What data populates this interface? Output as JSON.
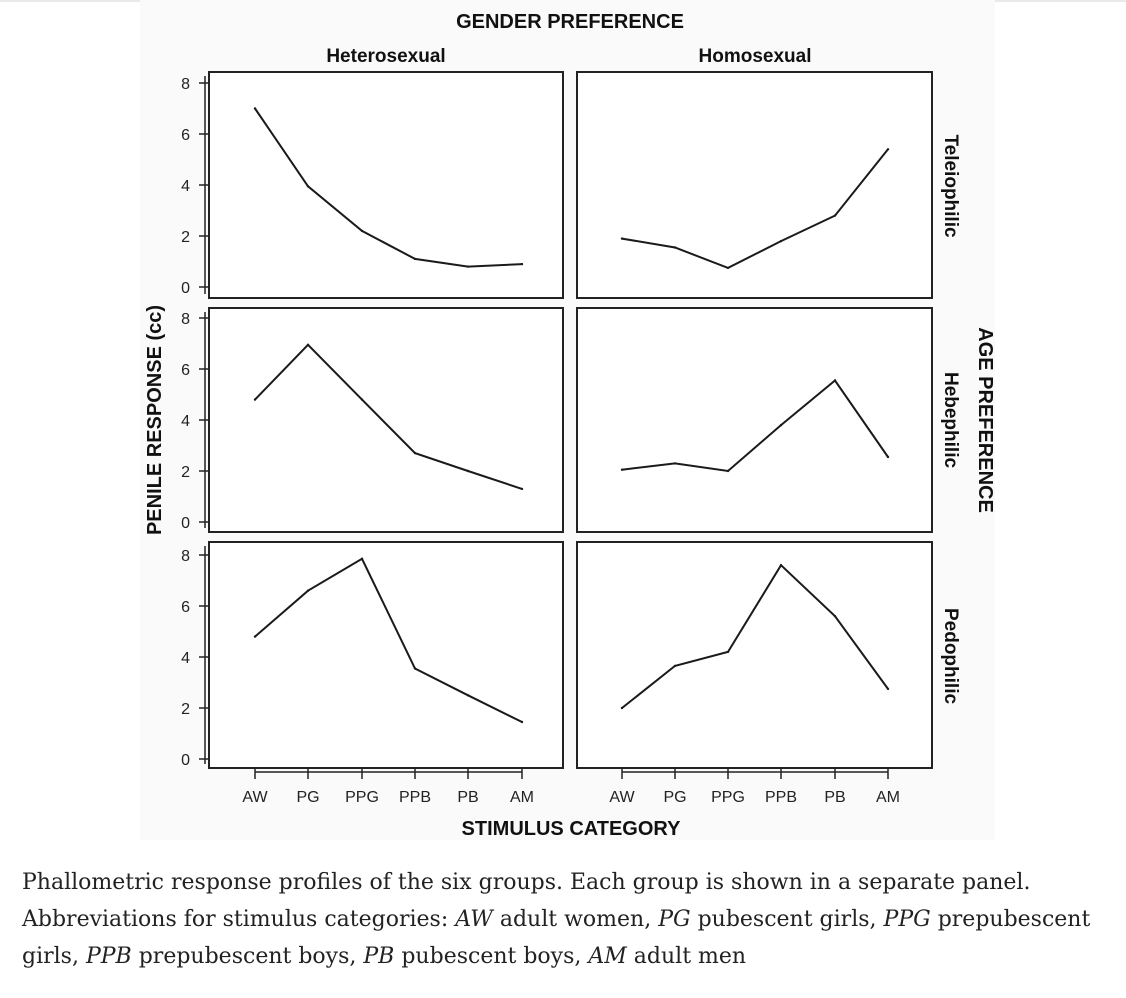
{
  "chart_data": {
    "type": "line",
    "title": "GENDER PREFERENCE",
    "xlabel": "STIMULUS CATEGORY",
    "ylabel": "PENILE RESPONSE (cc)",
    "row_header": "AGE PREFERENCE",
    "columns": [
      "Heterosexual",
      "Homosexual"
    ],
    "rows": [
      "Teleiophilic",
      "Hebephilic",
      "Pedophilic"
    ],
    "categories": [
      "AW",
      "PG",
      "PPG",
      "PPB",
      "PB",
      "AM"
    ],
    "ylim": [
      0,
      8
    ],
    "yticks": [
      "0",
      "2",
      "4",
      "6",
      "8"
    ],
    "grid": false,
    "panels": [
      {
        "column": "Heterosexual",
        "row": "Teleiophilic",
        "values": [
          7.0,
          3.95,
          2.2,
          1.1,
          0.8,
          0.9
        ]
      },
      {
        "column": "Homosexual",
        "row": "Teleiophilic",
        "values": [
          1.9,
          1.55,
          0.75,
          1.8,
          2.8,
          5.4
        ]
      },
      {
        "column": "Heterosexual",
        "row": "Hebephilic",
        "values": [
          4.8,
          6.95,
          4.8,
          2.7,
          2.0,
          1.3
        ]
      },
      {
        "column": "Homosexual",
        "row": "Hebephilic",
        "values": [
          2.05,
          2.3,
          2.0,
          3.8,
          5.55,
          2.55
        ]
      },
      {
        "column": "Heterosexual",
        "row": "Pedophilic",
        "values": [
          4.8,
          6.6,
          7.85,
          3.55,
          2.5,
          1.45
        ]
      },
      {
        "column": "Homosexual",
        "row": "Pedophilic",
        "values": [
          2.0,
          3.65,
          4.2,
          7.6,
          5.6,
          2.75
        ]
      }
    ]
  },
  "caption": {
    "intro": "Phallometric response profiles of the six groups. Each group is shown in a separate panel. Abbreviations for stimulus categories: ",
    "abbrevs": [
      {
        "code": "AW",
        "text": " adult women, "
      },
      {
        "code": "PG",
        "text": " pubescent girls, "
      },
      {
        "code": "PPG",
        "text": " prepubescent girls, "
      },
      {
        "code": "PPB",
        "text": " prepubescent boys, "
      },
      {
        "code": "PB",
        "text": " pubescent boys, "
      },
      {
        "code": "AM",
        "text": " adult men"
      }
    ]
  }
}
